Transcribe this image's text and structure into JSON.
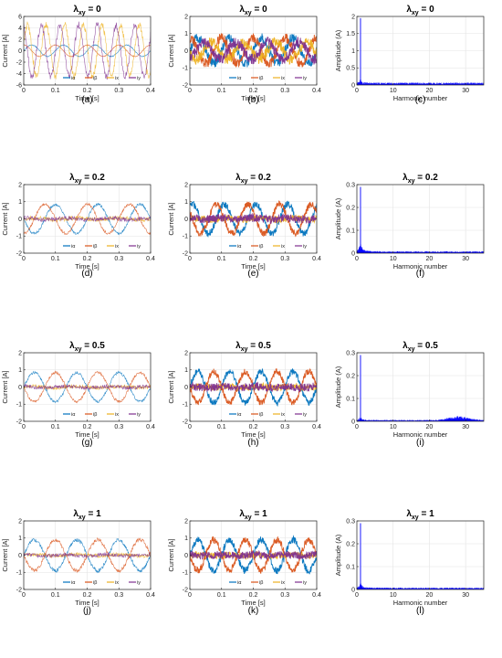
{
  "figure": {
    "colors": {
      "alpha": "#0072BD",
      "beta": "#D95319",
      "x": "#EDB120",
      "y": "#7E2F8E",
      "spectrum": "#0000FF"
    },
    "panel_letters": [
      "(a)",
      "(b)",
      "(c)",
      "(d)",
      "(e)",
      "(f)",
      "(g)",
      "(h)",
      "(i)",
      "(j)",
      "(k)",
      "(l)"
    ]
  },
  "chart_data": [
    {
      "id": "a",
      "type": "line",
      "title": "λxy = 0",
      "title_base": "λ",
      "title_sub": "xy",
      "title_rest": " = 0",
      "xlabel": "Time [s]",
      "ylabel": "Current [A]",
      "xlim": [
        0,
        0.4
      ],
      "ylim": [
        -6,
        6
      ],
      "xticks": [
        "0",
        "0.1",
        "0.2",
        "0.3",
        "0.4"
      ],
      "yticks": [
        "-6",
        "-4",
        "-2",
        "0",
        "2",
        "4",
        "6"
      ],
      "grid": true,
      "legend": [
        "iα",
        "iβ",
        "ix",
        "iy"
      ],
      "legend_placement": "bottom-right",
      "style": "faint",
      "series": [
        {
          "name": "iα",
          "color": "#0072BD",
          "amplitude": 1.0,
          "frequency_hz": 10,
          "phase_deg": 0,
          "noise": 0.05
        },
        {
          "name": "iβ",
          "color": "#D95319",
          "amplitude": 1.0,
          "frequency_hz": 10,
          "phase_deg": 90,
          "noise": 0.05
        },
        {
          "name": "ix",
          "color": "#EDB120",
          "amplitude": 4.5,
          "frequency_hz": 17,
          "phase_deg": 20,
          "noise": 0.4
        },
        {
          "name": "iy",
          "color": "#7E2F8E",
          "amplitude": 4.5,
          "frequency_hz": 17,
          "phase_deg": 110,
          "noise": 0.4
        }
      ]
    },
    {
      "id": "b",
      "type": "line",
      "title": "λxy = 0",
      "title_base": "λ",
      "title_sub": "xy",
      "title_rest": " = 0",
      "xlabel": "Time [s]",
      "ylabel": "Current [A]",
      "xlim": [
        0,
        0.4
      ],
      "ylim": [
        -2,
        2
      ],
      "xticks": [
        "0",
        "0.1",
        "0.2",
        "0.3",
        "0.4"
      ],
      "yticks": [
        "-2",
        "-1",
        "0",
        "1",
        "2"
      ],
      "grid": true,
      "legend": [
        "iα",
        "iβ",
        "ix",
        "iy"
      ],
      "legend_placement": "bottom-right",
      "style": "bold",
      "series": [
        {
          "name": "iα",
          "color": "#0072BD",
          "amplitude": 0.75,
          "frequency_hz": 10,
          "phase_deg": 0,
          "noise": 0.18
        },
        {
          "name": "iβ",
          "color": "#D95319",
          "amplitude": 0.75,
          "frequency_hz": 10,
          "phase_deg": 90,
          "noise": 0.18
        },
        {
          "name": "ix",
          "color": "#EDB120",
          "amplitude": 0.5,
          "frequency_hz": 10,
          "phase_deg": 200,
          "noise": 0.2
        },
        {
          "name": "iy",
          "color": "#7E2F8E",
          "amplitude": 0.5,
          "frequency_hz": 10,
          "phase_deg": 290,
          "noise": 0.2
        }
      ]
    },
    {
      "id": "c",
      "type": "bar",
      "title": "λxy = 0",
      "title_base": "λ",
      "title_sub": "xy",
      "title_rest": " = 0",
      "xlabel": "Harmonic number",
      "ylabel": "Amplitude (A)",
      "xlim": [
        0,
        35
      ],
      "ylim": [
        0,
        2
      ],
      "xticks": [
        "0",
        "10",
        "20",
        "30"
      ],
      "yticks": [
        "0",
        "0.5",
        "1",
        "1.5",
        "2"
      ],
      "grid": true,
      "spectrum": {
        "peak_at": 1,
        "peak_value": 1.95,
        "tail": 0.12,
        "tail_decay": 1.4,
        "floor": 0.035
      }
    },
    {
      "id": "d",
      "type": "line",
      "title": "λxy = 0.2",
      "title_base": "λ",
      "title_sub": "xy",
      "title_rest": " = 0.2",
      "xlabel": "Time [s]",
      "ylabel": "Current [A]",
      "xlim": [
        0,
        0.4
      ],
      "ylim": [
        -2,
        2
      ],
      "xticks": [
        "0",
        "0.1",
        "0.2",
        "0.3",
        "0.4"
      ],
      "yticks": [
        "-2",
        "-1",
        "0",
        "1",
        "2"
      ],
      "grid": true,
      "legend": [
        "iα",
        "iβ",
        "ix",
        "iy"
      ],
      "legend_placement": "bottom-right",
      "style": "faint",
      "series": [
        {
          "name": "iα",
          "color": "#0072BD",
          "amplitude": 0.85,
          "frequency_hz": 7.5,
          "phase_deg": 180,
          "noise": 0.05
        },
        {
          "name": "iβ",
          "color": "#D95319",
          "amplitude": 0.85,
          "frequency_hz": 7.5,
          "phase_deg": 270,
          "noise": 0.05
        },
        {
          "name": "ix",
          "color": "#EDB120",
          "amplitude": 0.05,
          "frequency_hz": 7.5,
          "phase_deg": 0,
          "noise": 0.08
        },
        {
          "name": "iy",
          "color": "#7E2F8E",
          "amplitude": 0.05,
          "frequency_hz": 7.5,
          "phase_deg": 90,
          "noise": 0.08
        }
      ]
    },
    {
      "id": "e",
      "type": "line",
      "title": "λxy = 0.2",
      "title_base": "λ",
      "title_sub": "xy",
      "title_rest": " = 0.2",
      "xlabel": "Time [s]",
      "ylabel": "Current [A]",
      "xlim": [
        0,
        0.4
      ],
      "ylim": [
        -2,
        2
      ],
      "xticks": [
        "0",
        "0.1",
        "0.2",
        "0.3",
        "0.4"
      ],
      "yticks": [
        "-2",
        "-1",
        "0",
        "1",
        "2"
      ],
      "grid": true,
      "legend": [
        "iα",
        "iβ",
        "ix",
        "iy"
      ],
      "legend_placement": "bottom-right",
      "style": "bold",
      "series": [
        {
          "name": "iα",
          "color": "#0072BD",
          "amplitude": 0.85,
          "frequency_hz": 10,
          "phase_deg": 60,
          "noise": 0.12
        },
        {
          "name": "iβ",
          "color": "#D95319",
          "amplitude": 0.85,
          "frequency_hz": 10,
          "phase_deg": 150,
          "noise": 0.12
        },
        {
          "name": "ix",
          "color": "#EDB120",
          "amplitude": 0.05,
          "frequency_hz": 10,
          "phase_deg": 0,
          "noise": 0.12
        },
        {
          "name": "iy",
          "color": "#7E2F8E",
          "amplitude": 0.05,
          "frequency_hz": 10,
          "phase_deg": 90,
          "noise": 0.15
        }
      ]
    },
    {
      "id": "f",
      "type": "bar",
      "title": "λxy = 0.2",
      "title_base": "λ",
      "title_sub": "xy",
      "title_rest": " = 0.2",
      "xlabel": "Harmonic number",
      "ylabel": "Amplitude (A)",
      "xlim": [
        0,
        35
      ],
      "ylim": [
        0,
        0.3
      ],
      "xticks": [
        "0",
        "10",
        "20",
        "30"
      ],
      "yticks": [
        "0",
        "0.1",
        "0.2",
        "0.3"
      ],
      "grid": true,
      "spectrum": {
        "peak_at": 1,
        "peak_value": 0.29,
        "tail": 0.045,
        "tail_decay": 1.2,
        "floor": 0.004
      }
    },
    {
      "id": "g",
      "type": "line",
      "title": "λxy = 0.5",
      "title_base": "λ",
      "title_sub": "xy",
      "title_rest": " = 0.5",
      "xlabel": "Time [s]",
      "ylabel": "Current [A]",
      "xlim": [
        0,
        0.4
      ],
      "ylim": [
        -2,
        2
      ],
      "xticks": [
        "0",
        "0.1",
        "0.2",
        "0.3",
        "0.4"
      ],
      "yticks": [
        "-2",
        "-1",
        "0",
        "1",
        "2"
      ],
      "grid": true,
      "legend": [
        "iα",
        "iβ",
        "ix",
        "iy"
      ],
      "legend_placement": "bottom-right",
      "style": "faint",
      "series": [
        {
          "name": "iα",
          "color": "#0072BD",
          "amplitude": 0.85,
          "frequency_hz": 7.5,
          "phase_deg": 0,
          "noise": 0.05
        },
        {
          "name": "iβ",
          "color": "#D95319",
          "amplitude": 0.85,
          "frequency_hz": 7.5,
          "phase_deg": 180,
          "noise": 0.05
        },
        {
          "name": "ix",
          "color": "#EDB120",
          "amplitude": 0.04,
          "frequency_hz": 7.5,
          "phase_deg": 0,
          "noise": 0.07
        },
        {
          "name": "iy",
          "color": "#7E2F8E",
          "amplitude": 0.04,
          "frequency_hz": 7.5,
          "phase_deg": 90,
          "noise": 0.07
        }
      ]
    },
    {
      "id": "h",
      "type": "line",
      "title": "λxy = 0.5",
      "title_base": "λ",
      "title_sub": "xy",
      "title_rest": " = 0.5",
      "xlabel": "Time [s]",
      "ylabel": "Current [A]",
      "xlim": [
        0,
        0.4
      ],
      "ylim": [
        -2,
        2
      ],
      "xticks": [
        "0",
        "0.1",
        "0.2",
        "0.3",
        "0.4"
      ],
      "yticks": [
        "-2",
        "-1",
        "0",
        "1",
        "2"
      ],
      "grid": true,
      "legend": [
        "iα",
        "iβ",
        "ix",
        "iy"
      ],
      "legend_placement": "bottom-right",
      "style": "bold",
      "series": [
        {
          "name": "iα",
          "color": "#0072BD",
          "amplitude": 0.9,
          "frequency_hz": 10,
          "phase_deg": 0,
          "noise": 0.12
        },
        {
          "name": "iβ",
          "color": "#D95319",
          "amplitude": 0.9,
          "frequency_hz": 10,
          "phase_deg": 180,
          "noise": 0.12
        },
        {
          "name": "ix",
          "color": "#EDB120",
          "amplitude": 0.04,
          "frequency_hz": 10,
          "phase_deg": 0,
          "noise": 0.12
        },
        {
          "name": "iy",
          "color": "#7E2F8E",
          "amplitude": 0.04,
          "frequency_hz": 10,
          "phase_deg": 90,
          "noise": 0.14
        }
      ]
    },
    {
      "id": "i",
      "type": "bar",
      "title": "λxy = 0.5",
      "title_base": "λ",
      "title_sub": "xy",
      "title_rest": " = 0.5",
      "xlabel": "Harmonic number",
      "ylabel": "Amplitude (A)",
      "xlim": [
        0,
        35
      ],
      "ylim": [
        0,
        0.3
      ],
      "xticks": [
        "0",
        "10",
        "20",
        "30"
      ],
      "yticks": [
        "0",
        "0.1",
        "0.2",
        "0.3"
      ],
      "grid": true,
      "spectrum": {
        "peak_at": 1,
        "peak_value": 0.29,
        "tail": 0.02,
        "tail_decay": 1.5,
        "floor": 0.003,
        "bump_at": 28,
        "bump_value": 0.012
      }
    },
    {
      "id": "j",
      "type": "line",
      "title": "λxy = 1",
      "title_base": "λ",
      "title_sub": "xy",
      "title_rest": " = 1",
      "xlabel": "Time [s]",
      "ylabel": "Current [A]",
      "xlim": [
        0,
        0.4
      ],
      "ylim": [
        -2,
        2
      ],
      "xticks": [
        "0",
        "0.1",
        "0.2",
        "0.3",
        "0.4"
      ],
      "yticks": [
        "-2",
        "-1",
        "0",
        "1",
        "2"
      ],
      "grid": true,
      "legend": [
        "iα",
        "iβ",
        "ix",
        "iy"
      ],
      "legend_placement": "bottom-right",
      "style": "faint",
      "series": [
        {
          "name": "iα",
          "color": "#0072BD",
          "amplitude": 0.9,
          "frequency_hz": 7.5,
          "phase_deg": 0,
          "noise": 0.07
        },
        {
          "name": "iβ",
          "color": "#D95319",
          "amplitude": 0.9,
          "frequency_hz": 7.5,
          "phase_deg": 180,
          "noise": 0.07
        },
        {
          "name": "ix",
          "color": "#EDB120",
          "amplitude": 0.04,
          "frequency_hz": 7.5,
          "phase_deg": 0,
          "noise": 0.07
        },
        {
          "name": "iy",
          "color": "#7E2F8E",
          "amplitude": 0.04,
          "frequency_hz": 7.5,
          "phase_deg": 90,
          "noise": 0.07
        }
      ]
    },
    {
      "id": "k",
      "type": "line",
      "title": "λxy = 1",
      "title_base": "λ",
      "title_sub": "xy",
      "title_rest": " = 1",
      "xlabel": "Time [s]",
      "ylabel": "Current [A]",
      "xlim": [
        0,
        0.4
      ],
      "ylim": [
        -2,
        2
      ],
      "xticks": [
        "0",
        "0.1",
        "0.2",
        "0.3",
        "0.4"
      ],
      "yticks": [
        "-2",
        "-1",
        "0",
        "1",
        "2"
      ],
      "grid": true,
      "legend": [
        "iα",
        "iβ",
        "ix",
        "iy"
      ],
      "legend_placement": "bottom-right",
      "style": "bold",
      "series": [
        {
          "name": "iα",
          "color": "#0072BD",
          "amplitude": 0.9,
          "frequency_hz": 10,
          "phase_deg": 0,
          "noise": 0.13
        },
        {
          "name": "iβ",
          "color": "#D95319",
          "amplitude": 0.9,
          "frequency_hz": 10,
          "phase_deg": 180,
          "noise": 0.13
        },
        {
          "name": "ix",
          "color": "#EDB120",
          "amplitude": 0.04,
          "frequency_hz": 10,
          "phase_deg": 0,
          "noise": 0.12
        },
        {
          "name": "iy",
          "color": "#7E2F8E",
          "amplitude": 0.04,
          "frequency_hz": 10,
          "phase_deg": 90,
          "noise": 0.14
        }
      ]
    },
    {
      "id": "l",
      "type": "bar",
      "title": "λxy = 1",
      "title_base": "λ",
      "title_sub": "xy",
      "title_rest": " = 1",
      "xlabel": "Harmonic number",
      "ylabel": "Amplitude (A)",
      "xlim": [
        0,
        35
      ],
      "ylim": [
        0,
        0.3
      ],
      "xticks": [
        "0",
        "10",
        "20",
        "30"
      ],
      "yticks": [
        "0",
        "0.1",
        "0.2",
        "0.3"
      ],
      "grid": true,
      "spectrum": {
        "peak_at": 1,
        "peak_value": 0.29,
        "tail": 0.025,
        "tail_decay": 1.3,
        "floor": 0.004
      }
    }
  ]
}
